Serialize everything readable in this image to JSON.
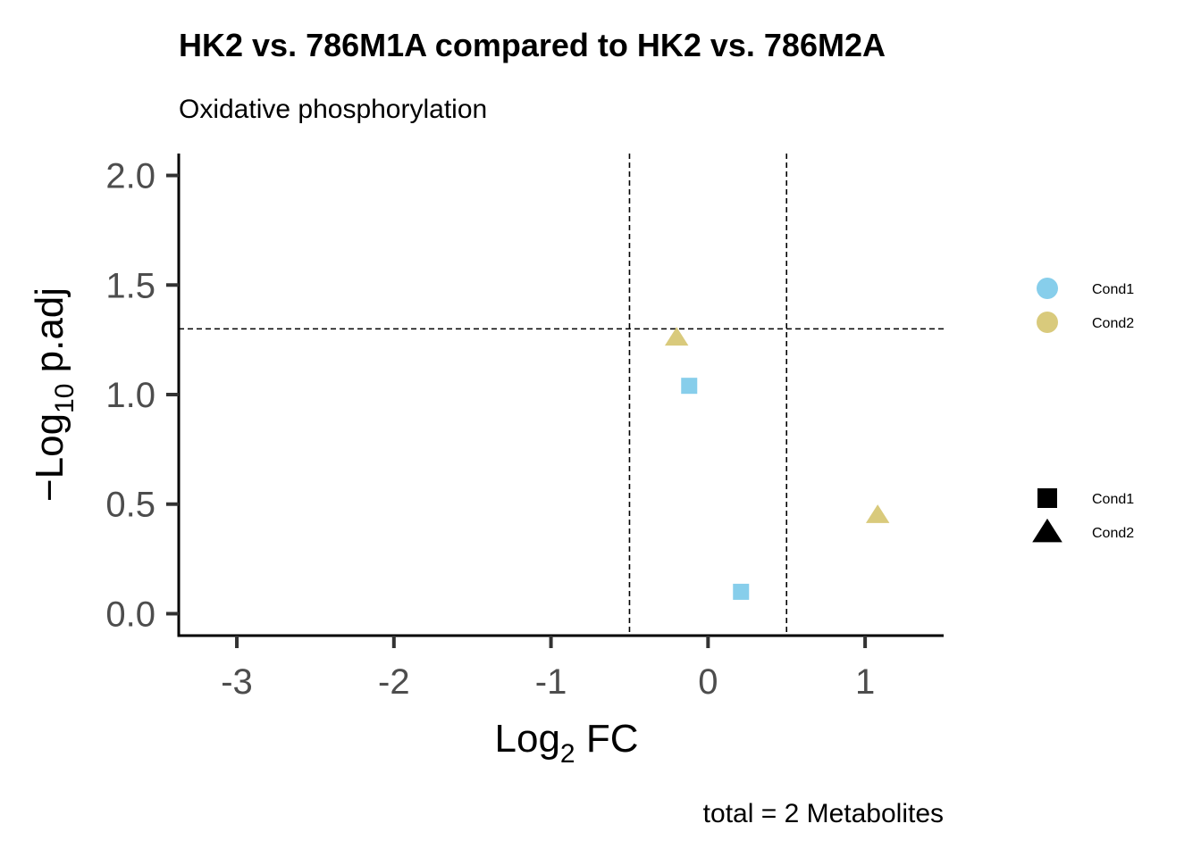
{
  "chart_data": {
    "type": "scatter",
    "title": "HK2 vs. 786M1A compared to HK2 vs. 786M2A",
    "subtitle": "Oxidative phosphorylation",
    "xlabel_main": "Log",
    "xlabel_sub": "2",
    "xlabel_rest": " FC",
    "ylabel_main": "−Log",
    "ylabel_sub": "10",
    "ylabel_rest": " p.adj",
    "caption": "total = 2 Metabolites",
    "xlim": [
      -3.37,
      1.5
    ],
    "ylim": [
      -0.1,
      2.1
    ],
    "x_ticks": [
      -3,
      -2,
      -1,
      0,
      1
    ],
    "x_tick_labels": [
      "-3",
      "-2",
      "-1",
      "0",
      "1"
    ],
    "y_ticks": [
      0,
      0.5,
      1,
      1.5,
      2
    ],
    "y_tick_labels": [
      "0.0",
      "0.5",
      "1.0",
      "1.5",
      "2.0"
    ],
    "reference_lines": {
      "vertical": [
        -0.5,
        0.5
      ],
      "horizontal": [
        1.3
      ]
    },
    "grid": false,
    "series": [
      {
        "name": "Cond1",
        "color": "#87ceeb",
        "shape": "square",
        "points": [
          {
            "x": -0.12,
            "y": 1.04
          },
          {
            "x": 0.21,
            "y": 0.1
          }
        ]
      },
      {
        "name": "Cond2",
        "color": "#d9ca7c",
        "shape": "triangle",
        "points": [
          {
            "x": -0.2,
            "y": 1.26
          },
          {
            "x": 1.08,
            "y": 0.45
          }
        ]
      }
    ],
    "legend": {
      "placement": "right",
      "color_entries": [
        {
          "label": "Cond1",
          "color": "#87ceeb"
        },
        {
          "label": "Cond2",
          "color": "#d9ca7c"
        }
      ],
      "shape_entries": [
        {
          "label": "Cond1",
          "shape": "square"
        },
        {
          "label": "Cond2",
          "shape": "triangle"
        }
      ]
    }
  }
}
